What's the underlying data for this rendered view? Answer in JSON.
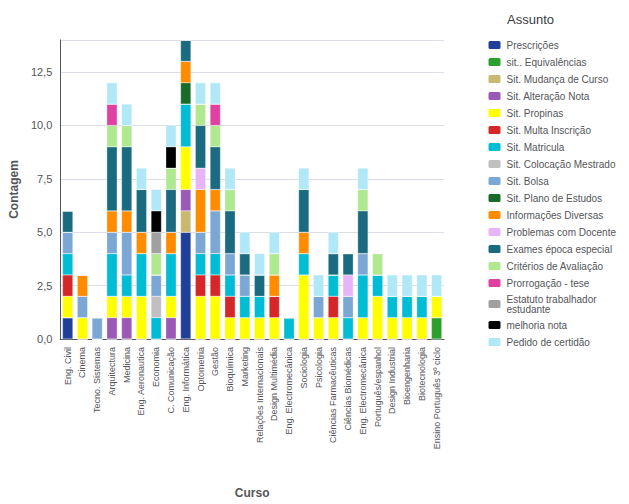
{
  "chart_data": {
    "type": "bar",
    "title": "Assunto",
    "xlabel": "Curso",
    "ylabel": "Contagem",
    "categories": [
      "Eng. Civil",
      "Cinema",
      "Tecno. Sistemas",
      "Arquitectura",
      "Medicina",
      "Eng. Aeronautica",
      "Economia",
      "C. Comunicação",
      "Eng. Informática",
      "Optometria",
      "Gestão",
      "Bioquímica",
      "Marketing",
      "Relações Internacionais",
      "Design Multimédia",
      "Eng. Electromecânica",
      "Sociologia",
      "Psicologia",
      "Ciências Farmacêuticas",
      "Ciências Biomédicas",
      "Eng. Electromecânica",
      "Português/espanhol",
      "Design Industrial",
      "Bioengenharia",
      "Biotecnologia",
      "Ensino Português 3º ciclo"
    ],
    "series": [
      {
        "name": "Prescrições",
        "color": "#1f3f99",
        "values": [
          1,
          0,
          0,
          0,
          0,
          0,
          0,
          0,
          5,
          0,
          0,
          0,
          0,
          0,
          0,
          0,
          0,
          0,
          0,
          0,
          0,
          0,
          0,
          0,
          0,
          0
        ]
      },
      {
        "name": "sit.. Equivalências",
        "color": "#2ca02c",
        "values": [
          0,
          0,
          0,
          0,
          0,
          0,
          0,
          0,
          0,
          0,
          0,
          0,
          0,
          0,
          0,
          0,
          0,
          0,
          0,
          0,
          0,
          0,
          0,
          0,
          0,
          1
        ]
      },
      {
        "name": "Sit. Mudança de Curso",
        "color": "#c8b870",
        "values": [
          0,
          0,
          0,
          0,
          0,
          0,
          0,
          0,
          1,
          0,
          0,
          0,
          0,
          0,
          0,
          0,
          0,
          0,
          0,
          0,
          0,
          0,
          0,
          0,
          0,
          0
        ]
      },
      {
        "name": "Sit. Alteração Nota",
        "color": "#9b59b6",
        "values": [
          0,
          0,
          0,
          1,
          1,
          0,
          0,
          1,
          1,
          0,
          0,
          0,
          0,
          0,
          0,
          0,
          0,
          0,
          0,
          0,
          0,
          0,
          0,
          0,
          0,
          0
        ]
      },
      {
        "name": "Sit. Propinas",
        "color": "#ffff00",
        "values": [
          1,
          1,
          0,
          1,
          1,
          2,
          0,
          1,
          2,
          2,
          2,
          1,
          1,
          1,
          1,
          0,
          3,
          1,
          1,
          0,
          1,
          2,
          1,
          1,
          1,
          1
        ]
      },
      {
        "name": "Sit. Multa Inscrição",
        "color": "#d62728",
        "values": [
          1,
          0,
          0,
          0,
          0,
          0,
          0,
          0,
          0,
          1,
          1,
          1,
          0,
          0,
          1,
          0,
          0,
          0,
          1,
          0,
          0,
          0,
          0,
          0,
          0,
          0
        ]
      },
      {
        "name": "Sit. Matricula",
        "color": "#00bcd4",
        "values": [
          1,
          0,
          0,
          2,
          1,
          2,
          1,
          2,
          2,
          1,
          1,
          1,
          1,
          1,
          0,
          1,
          1,
          0,
          1,
          1,
          2,
          1,
          1,
          1,
          1,
          0
        ]
      },
      {
        "name": "Sit. Colocação Mestrado",
        "color": "#c0c0c0",
        "values": [
          0,
          0,
          0,
          0,
          0,
          0,
          1,
          0,
          0,
          0,
          0,
          0,
          0,
          0,
          0,
          0,
          0,
          0,
          0,
          0,
          0,
          0,
          0,
          0,
          0,
          0
        ]
      },
      {
        "name": "Sit. Bolsa",
        "color": "#7ba7d4",
        "values": [
          1,
          1,
          1,
          1,
          2,
          0,
          1,
          0,
          0,
          1,
          2,
          1,
          1,
          0,
          0,
          0,
          0,
          1,
          0,
          1,
          1,
          0,
          0,
          0,
          0,
          0
        ]
      },
      {
        "name": "Sit. Plano de Estudos",
        "color": "#1a6b2a",
        "values": [
          0,
          0,
          0,
          0,
          0,
          0,
          0,
          0,
          1,
          0,
          0,
          0,
          0,
          0,
          0,
          0,
          0,
          0,
          0,
          0,
          0,
          0,
          0,
          0,
          0,
          0
        ]
      },
      {
        "name": "Informações Diversas",
        "color": "#ff8c00",
        "values": [
          0,
          1,
          0,
          1,
          1,
          1,
          0,
          1,
          1,
          2,
          1,
          0,
          0,
          0,
          1,
          0,
          1,
          0,
          0,
          0,
          0,
          0,
          0,
          0,
          0,
          0
        ]
      },
      {
        "name": "Problemas com Docente",
        "color": "#e8b4f8",
        "values": [
          0,
          0,
          0,
          0,
          0,
          0,
          0,
          0,
          0,
          1,
          0,
          0,
          0,
          0,
          0,
          0,
          0,
          0,
          0,
          1,
          0,
          0,
          0,
          0,
          0,
          0
        ]
      },
      {
        "name": "Exames época especial",
        "color": "#1b6b80",
        "values": [
          1,
          0,
          0,
          3,
          3,
          2,
          0,
          2,
          1,
          2,
          2,
          2,
          1,
          1,
          0,
          0,
          2,
          0,
          1,
          1,
          2,
          0,
          0,
          0,
          0,
          0
        ]
      },
      {
        "name": "Critérios de Avaliação",
        "color": "#b0e890",
        "values": [
          0,
          0,
          0,
          1,
          1,
          0,
          1,
          1,
          0,
          1,
          1,
          1,
          0,
          0,
          1,
          0,
          0,
          0,
          0,
          0,
          1,
          1,
          0,
          0,
          0,
          0
        ]
      },
      {
        "name": "Prorrogação - tese",
        "color": "#e040a0",
        "values": [
          0,
          0,
          0,
          1,
          0,
          0,
          0,
          0,
          0,
          0,
          1,
          0,
          0,
          0,
          0,
          0,
          0,
          0,
          0,
          0,
          0,
          0,
          0,
          0,
          0,
          0
        ]
      },
      {
        "name": "Estatuto trabalhador\nestudante",
        "color": "#a0a0a0",
        "values": [
          0,
          0,
          0,
          0,
          0,
          0,
          1,
          0,
          0,
          0,
          0,
          0,
          0,
          0,
          0,
          0,
          0,
          0,
          0,
          0,
          0,
          0,
          0,
          0,
          0,
          0
        ]
      },
      {
        "name": "melhoria nota",
        "color": "#000000",
        "values": [
          0,
          0,
          0,
          0,
          0,
          0,
          1,
          1,
          0,
          0,
          0,
          0,
          0,
          0,
          0,
          0,
          0,
          0,
          0,
          0,
          0,
          0,
          0,
          0,
          0,
          0
        ]
      },
      {
        "name": "Pedido de certidão",
        "color": "#b0e8f8",
        "values": [
          0,
          0,
          0,
          1,
          1,
          1,
          1,
          1,
          0,
          1,
          1,
          1,
          1,
          1,
          1,
          0,
          1,
          1,
          1,
          0,
          1,
          0,
          1,
          1,
          1,
          1
        ]
      }
    ],
    "ylim": [
      0,
      14
    ],
    "yticks": [
      {
        "value": 0,
        "label": "0,0"
      },
      {
        "value": 2.5,
        "label": "2,5"
      },
      {
        "value": 5,
        "label": "5,0"
      },
      {
        "value": 7.5,
        "label": "7,5"
      },
      {
        "value": 10,
        "label": "10,0"
      },
      {
        "value": 12.5,
        "label": "12,5"
      }
    ],
    "grid": true,
    "stacked": true,
    "legend": "right"
  }
}
